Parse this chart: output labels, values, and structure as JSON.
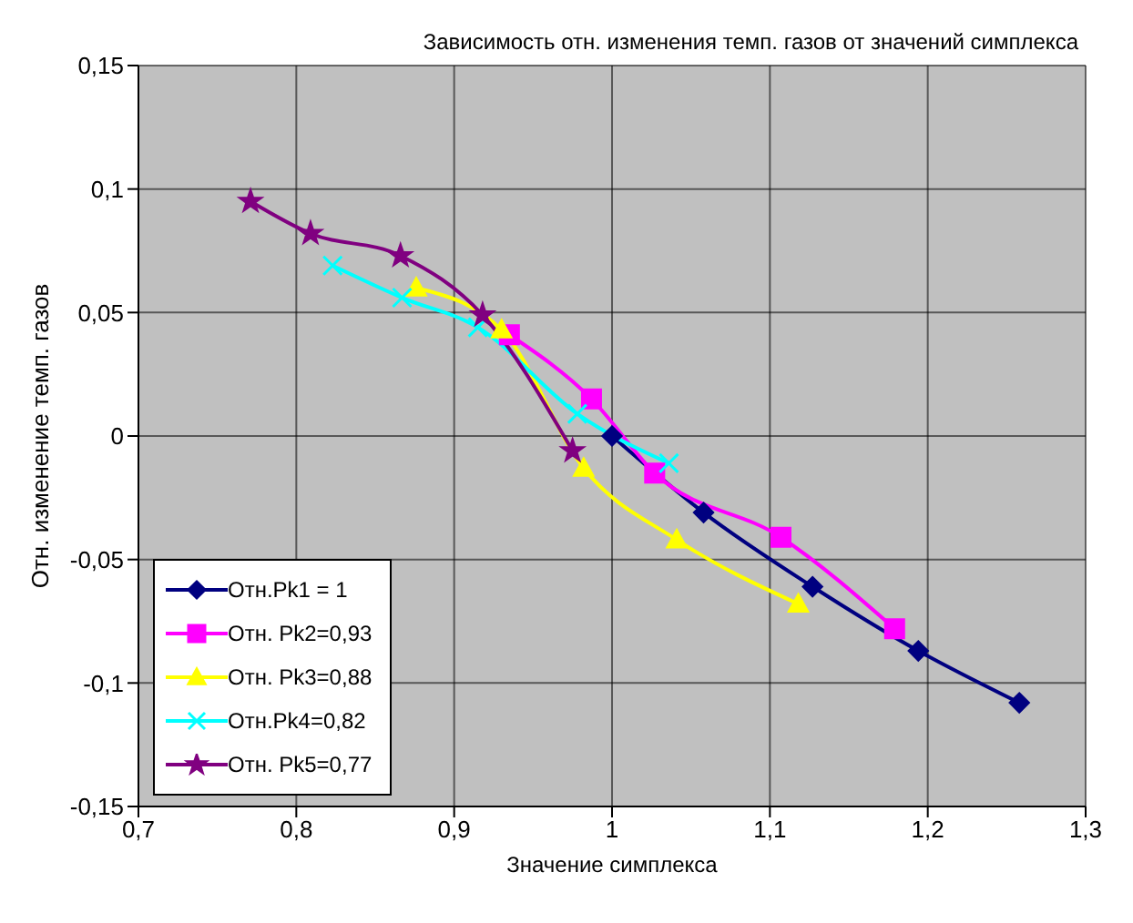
{
  "chart_data": {
    "type": "line",
    "title": "Зависимость отн. изменения темп. газов от значений симплекса",
    "xlabel": "Значение симплекса",
    "ylabel": "Отн. изменение темп. газов",
    "xlim": [
      0.7,
      1.3
    ],
    "xticks": [
      {
        "value": 0.7,
        "label": "0,7"
      },
      {
        "value": 0.8,
        "label": "0,8"
      },
      {
        "value": 0.9,
        "label": "0,9"
      },
      {
        "value": 1,
        "label": "1"
      },
      {
        "value": 1.1,
        "label": "1,1"
      },
      {
        "value": 1.2,
        "label": "1,2"
      },
      {
        "value": 1.3,
        "label": "1,3"
      }
    ],
    "ylim": [
      -0.15,
      0.15
    ],
    "yticks": [
      {
        "value": -0.15,
        "label": "-0,15"
      },
      {
        "value": -0.1,
        "label": "-0,1"
      },
      {
        "value": -0.05,
        "label": "-0,05"
      },
      {
        "value": 0,
        "label": "0"
      },
      {
        "value": 0.05,
        "label": "0,05"
      },
      {
        "value": 0.1,
        "label": "0,1"
      },
      {
        "value": 0.15,
        "label": "0,15"
      }
    ],
    "grid": true,
    "legend": "bottom left",
    "series": [
      {
        "name": "Отн.Pk1 = 1",
        "color": "#000080",
        "marker": "diamond",
        "x": [
          1.0,
          1.058,
          1.127,
          1.194,
          1.258
        ],
        "values": [
          0,
          -0.031,
          -0.061,
          -0.087,
          -0.108
        ]
      },
      {
        "name": "Отн. Pk2=0,93",
        "color": "#ff00ff",
        "marker": "square",
        "x": [
          0.935,
          0.987,
          1.027,
          1.107,
          1.179
        ],
        "values": [
          0.041,
          0.015,
          -0.015,
          -0.041,
          -0.078
        ]
      },
      {
        "name": "Отн. Pk3=0,88",
        "color": "#ffff00",
        "marker": "triangle",
        "x": [
          0.876,
          0.93,
          0.982,
          1.041,
          1.118
        ],
        "values": [
          0.06,
          0.043,
          -0.013,
          -0.042,
          -0.068
        ]
      },
      {
        "name": "Отн.Pk4=0,82",
        "color": "#00ffff",
        "marker": "cross",
        "x": [
          0.823,
          0.867,
          0.915,
          0.978,
          1.036
        ],
        "values": [
          0.069,
          0.056,
          0.044,
          0.009,
          -0.011
        ]
      },
      {
        "name": "Отн. Pk5=0,77",
        "color": "#800080",
        "marker": "star",
        "x": [
          0.771,
          0.809,
          0.866,
          0.918,
          0.975
        ],
        "values": [
          0.095,
          0.082,
          0.073,
          0.049,
          -0.006
        ]
      }
    ]
  }
}
